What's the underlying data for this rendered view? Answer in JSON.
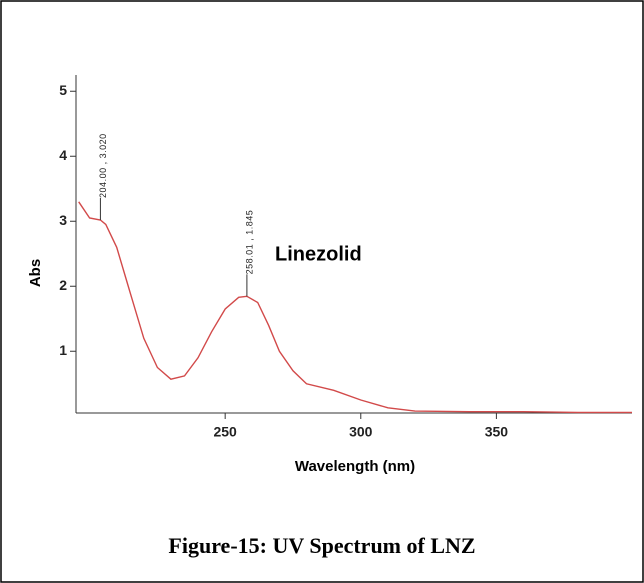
{
  "chart_data": {
    "type": "line",
    "caption": "Figure-15: UV Spectrum of LNZ",
    "xlabel": "Wavelength (nm)",
    "ylabel": "Abs",
    "legend_label": "Linezolid",
    "x": [
      196,
      200,
      204,
      206,
      210,
      215,
      220,
      225,
      230,
      235,
      240,
      245,
      250,
      255,
      258.01,
      262,
      266,
      270,
      275,
      280,
      290,
      300,
      310,
      320,
      340,
      360,
      380,
      400
    ],
    "series": [
      {
        "name": "Linezolid",
        "color": "#d24a4a",
        "values": [
          3.3,
          3.05,
          3.02,
          2.95,
          2.6,
          1.9,
          1.2,
          0.75,
          0.57,
          0.62,
          0.9,
          1.3,
          1.65,
          1.83,
          1.845,
          1.75,
          1.4,
          1.0,
          0.7,
          0.5,
          0.4,
          0.25,
          0.13,
          0.08,
          0.07,
          0.07,
          0.06,
          0.06
        ]
      }
    ],
    "annotations": [
      {
        "x": 204.0,
        "y": 3.02,
        "label": "204.00 , 3.020"
      },
      {
        "x": 258.01,
        "y": 1.845,
        "label": "258.01 , 1.845"
      }
    ],
    "xlim": [
      195,
      400
    ],
    "ylim": [
      0.05,
      5.25
    ],
    "xticks": [
      250,
      300,
      350
    ],
    "yticks": [
      1,
      2,
      3,
      4,
      5
    ]
  }
}
